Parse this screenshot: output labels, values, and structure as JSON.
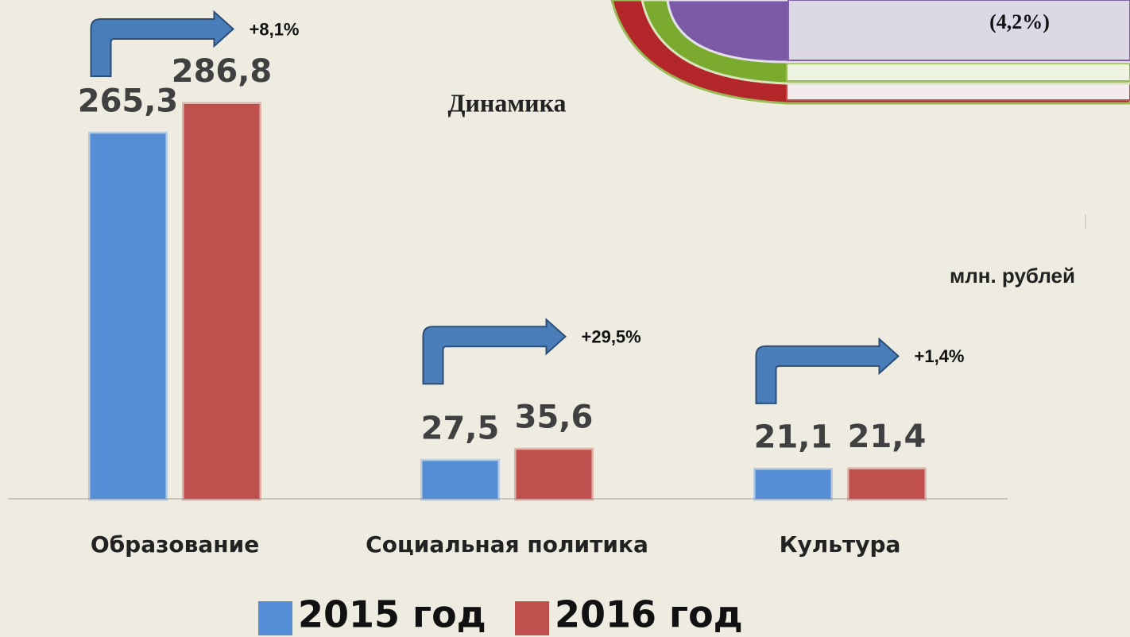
{
  "chart_data": {
    "type": "bar",
    "title": "Динамика",
    "unit": "млн. рублей",
    "categories": [
      "Образование",
      "Социальная политика",
      "Культура"
    ],
    "growth_labels": [
      "+8,1%",
      "+29,5%",
      "+1,4%"
    ],
    "series": [
      {
        "name": "2015 год",
        "color": "#558ed5",
        "values": [
          265.3,
          27.5,
          21.1
        ],
        "value_labels": [
          "265,3",
          "27,5",
          "21,1"
        ]
      },
      {
        "name": "2016 год",
        "color": "#c0504d",
        "values": [
          286.8,
          35.6,
          21.4
        ],
        "value_labels": [
          "286,8",
          "35,6",
          "21,4"
        ]
      }
    ]
  },
  "header_fragment": "(4,2%)"
}
